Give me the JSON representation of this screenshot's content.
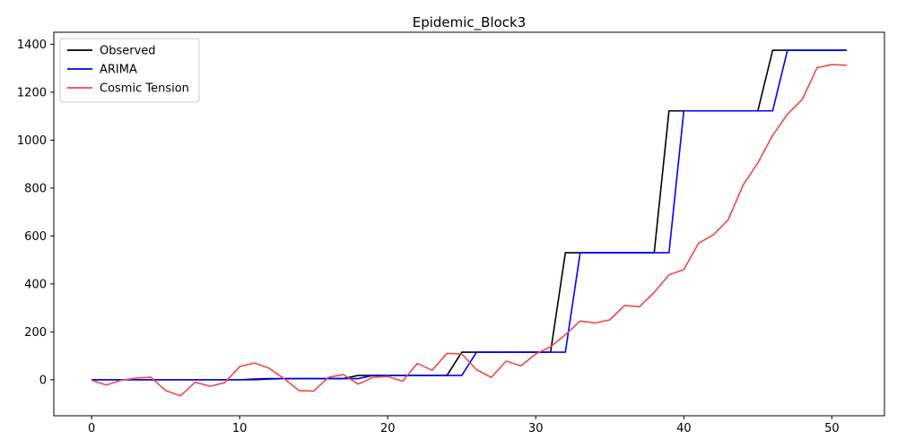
{
  "chart_data": {
    "type": "line",
    "title": "Epidemic_Block3",
    "xlabel": "",
    "ylabel": "",
    "xlim": [
      -2.55,
      53.55
    ],
    "ylim": [
      -150,
      1450
    ],
    "x_ticks": [
      0,
      10,
      20,
      30,
      40,
      50
    ],
    "y_ticks": [
      0,
      200,
      400,
      600,
      800,
      1000,
      1200,
      1400
    ],
    "grid": false,
    "legend_position": "top-left",
    "series": [
      {
        "name": "Observed",
        "color": "#000000",
        "x": [
          0,
          1,
          2,
          3,
          4,
          5,
          6,
          7,
          8,
          9,
          10,
          11,
          12,
          13,
          14,
          15,
          16,
          17,
          18,
          19,
          20,
          21,
          22,
          23,
          24,
          25,
          26,
          27,
          28,
          29,
          30,
          31,
          32,
          33,
          34,
          35,
          36,
          37,
          38,
          39,
          40,
          41,
          42,
          43,
          44,
          45,
          46,
          47,
          48,
          49,
          50,
          51
        ],
        "values": [
          0,
          0,
          0,
          0,
          0,
          0,
          0,
          0,
          0,
          0,
          0,
          3,
          5,
          5,
          5,
          5,
          5,
          5,
          18,
          18,
          18,
          18,
          18,
          18,
          18,
          115,
          115,
          115,
          115,
          115,
          115,
          115,
          530,
          530,
          530,
          530,
          530,
          530,
          530,
          1122,
          1122,
          1122,
          1122,
          1122,
          1122,
          1122,
          1375,
          1375,
          1375,
          1375,
          1375,
          1375
        ]
      },
      {
        "name": "ARIMA",
        "color": "#0000ff",
        "x": [
          0,
          1,
          2,
          3,
          4,
          5,
          6,
          7,
          8,
          9,
          10,
          11,
          12,
          13,
          14,
          15,
          16,
          17,
          18,
          19,
          20,
          21,
          22,
          23,
          24,
          25,
          26,
          27,
          28,
          29,
          30,
          31,
          32,
          33,
          34,
          35,
          36,
          37,
          38,
          39,
          40,
          41,
          42,
          43,
          44,
          45,
          46,
          47,
          48,
          49,
          50,
          51
        ],
        "values": [
          0,
          0,
          0,
          0,
          0,
          0,
          0,
          0,
          0,
          0,
          0,
          0,
          3,
          5,
          5,
          5,
          5,
          5,
          5,
          18,
          18,
          18,
          18,
          18,
          18,
          18,
          115,
          115,
          115,
          115,
          115,
          115,
          115,
          530,
          530,
          530,
          530,
          530,
          530,
          530,
          1122,
          1122,
          1122,
          1122,
          1122,
          1122,
          1122,
          1375,
          1375,
          1375,
          1375,
          1375
        ]
      },
      {
        "name": "Cosmic Tension",
        "color": "#f04848",
        "x": [
          0,
          1,
          2,
          3,
          4,
          5,
          6,
          7,
          8,
          9,
          10,
          11,
          12,
          13,
          14,
          15,
          16,
          17,
          18,
          19,
          20,
          21,
          22,
          23,
          24,
          25,
          26,
          27,
          28,
          29,
          30,
          31,
          32,
          33,
          34,
          35,
          36,
          37,
          38,
          39,
          40,
          41,
          42,
          43,
          44,
          45,
          46,
          47,
          48,
          49,
          50,
          51
        ],
        "values": [
          -2,
          -22,
          -2,
          7,
          11,
          -45,
          -67,
          -10,
          -27,
          -12,
          55,
          70,
          48,
          5,
          -45,
          -47,
          10,
          22,
          -18,
          10,
          14,
          -6,
          68,
          40,
          110,
          108,
          42,
          10,
          78,
          58,
          108,
          138,
          188,
          245,
          237,
          250,
          310,
          305,
          365,
          438,
          460,
          570,
          605,
          668,
          812,
          905,
          1020,
          1108,
          1170,
          1302,
          1315,
          1312
        ]
      }
    ]
  }
}
